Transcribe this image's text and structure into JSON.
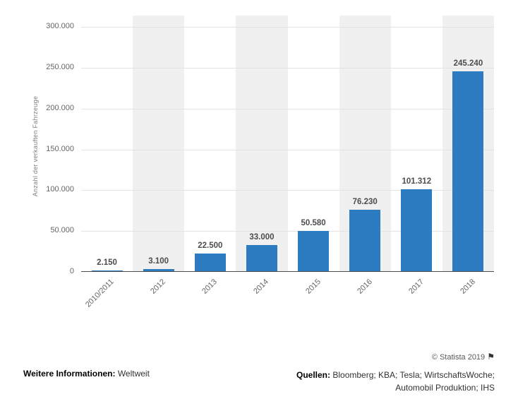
{
  "chart_data": {
    "type": "bar",
    "title": "",
    "categories": [
      "2010/2011",
      "2012",
      "2013",
      "2014",
      "2015",
      "2016",
      "2017",
      "2018"
    ],
    "values": [
      2150,
      3100,
      22500,
      33000,
      50580,
      76230,
      101312,
      245240
    ],
    "value_labels": [
      "2.150",
      "3.100",
      "22.500",
      "33.000",
      "50.580",
      "76.230",
      "101.312",
      "245.240"
    ],
    "xlabel": "",
    "ylabel": "Anzahl der verkauften Fahrzeuge",
    "ylim": [
      0,
      300000
    ],
    "yticks": [
      0,
      50000,
      100000,
      150000,
      200000,
      250000,
      300000
    ],
    "ytick_labels": [
      "0",
      "50.000",
      "100.000",
      "150.000",
      "200.000",
      "250.000",
      "300.000"
    ],
    "grid": true,
    "legend": false,
    "colors": {
      "bar": "#2d7cc1",
      "band": "#f0f0f0",
      "gridline": "#e3e3e3",
      "axis": "#4d4d4d",
      "tick_text": "#666666",
      "value_text": "#4d4d4d"
    }
  },
  "footer": {
    "info_label": "Weitere Informationen:",
    "info_value": "Weltweit",
    "copyright": "© Statista 2019",
    "flag_icon": "⚑",
    "sources_label": "Quellen:",
    "sources_line1": "Bloomberg; KBA; Tesla; WirtschaftsWoche;",
    "sources_line2": "Automobil Produktion; IHS"
  }
}
